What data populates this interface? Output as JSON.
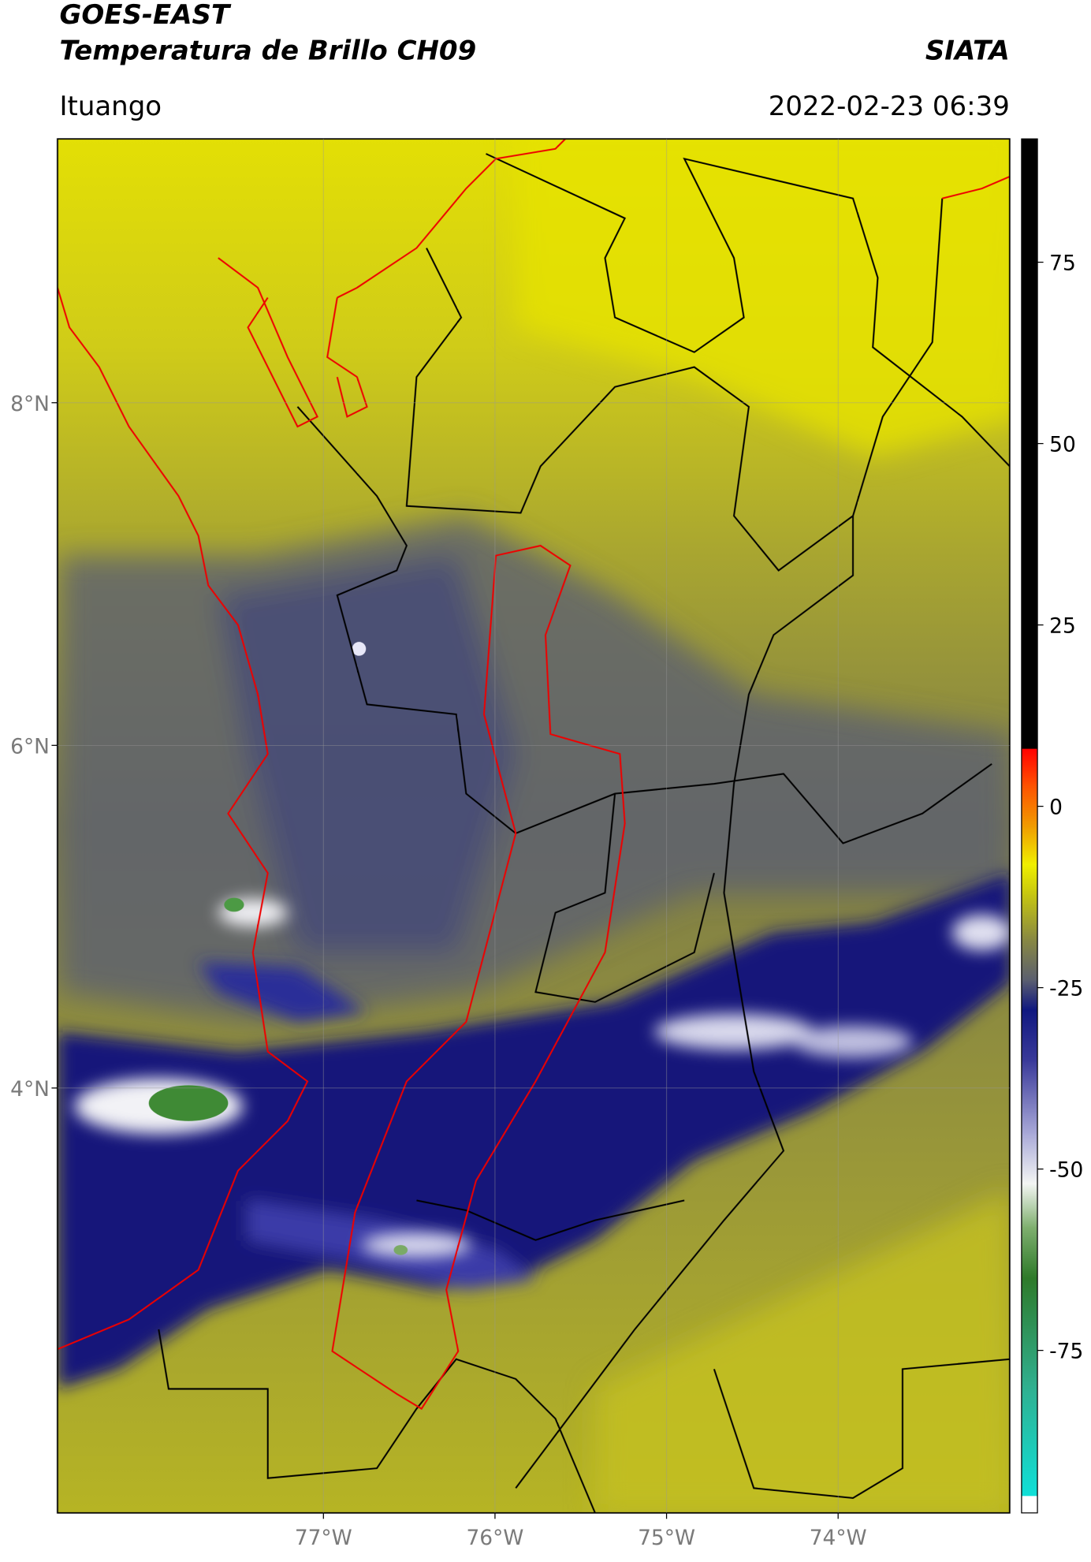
{
  "header": {
    "title": "GOES-EAST",
    "subtitle": "Temperatura de Brillo CH09",
    "organization": "SIATA",
    "location": "Ituango",
    "timestamp": "2022-02-23 06:39"
  },
  "map": {
    "lonlim": [
      -78.55,
      -73.0
    ],
    "latlim": [
      1.52,
      9.54
    ],
    "lonticks": [
      {
        "value": -77,
        "label": "77°W"
      },
      {
        "value": -76,
        "label": "76°W"
      },
      {
        "value": -75,
        "label": "75°W"
      },
      {
        "value": -74,
        "label": "74°W"
      }
    ],
    "latticks": [
      {
        "value": 8,
        "label": "8°N"
      },
      {
        "value": 6,
        "label": "6°N"
      },
      {
        "value": 4,
        "label": "4°N"
      }
    ],
    "grid": true
  },
  "colorbar": {
    "lim": [
      -97.4,
      92
    ],
    "ticks": [
      75,
      50,
      25,
      0,
      -25,
      -50,
      -75
    ],
    "stops": [
      {
        "value": -97.4,
        "color": "#ffffff"
      },
      {
        "value": -95,
        "color": "#ffffff"
      },
      {
        "value": -95,
        "color": "#10e0d8"
      },
      {
        "value": -80,
        "color": "#30b090"
      },
      {
        "value": -65,
        "color": "#2e7a2a"
      },
      {
        "value": -58,
        "color": "#80b070"
      },
      {
        "value": -52,
        "color": "#f4f6f4"
      },
      {
        "value": -45,
        "color": "#a8a8d8"
      },
      {
        "value": -35,
        "color": "#3a3a9a"
      },
      {
        "value": -28,
        "color": "#101880"
      },
      {
        "value": -24,
        "color": "#5a5e70"
      },
      {
        "value": -18,
        "color": "#8c8c40"
      },
      {
        "value": -12,
        "color": "#c8c810"
      },
      {
        "value": -8,
        "color": "#f0f000"
      },
      {
        "value": -3,
        "color": "#f0a000"
      },
      {
        "value": 3,
        "color": "#ff5000"
      },
      {
        "value": 8,
        "color": "#ff0000"
      },
      {
        "value": 8,
        "color": "#000000"
      },
      {
        "value": 92,
        "color": "#000000"
      }
    ]
  }
}
